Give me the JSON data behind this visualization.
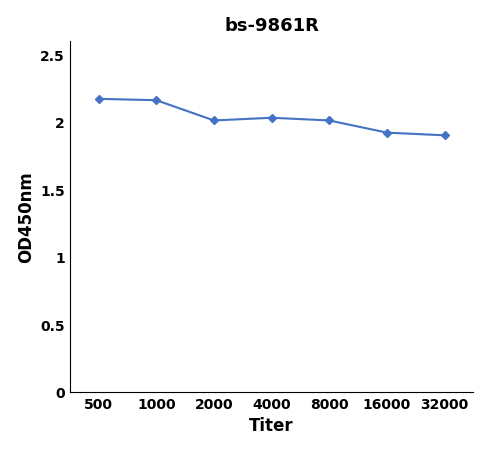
{
  "title": "bs-9861R",
  "xlabel": "Titer",
  "ylabel": "OD450nm",
  "x_positions": [
    0,
    1,
    2,
    3,
    4,
    5,
    6
  ],
  "y_values": [
    2.17,
    2.16,
    2.01,
    2.03,
    2.01,
    1.92,
    1.9
  ],
  "x_tick_labels": [
    "500",
    "1000",
    "2000",
    "4000",
    "8000",
    "16000",
    "32000"
  ],
  "ylim": [
    0,
    2.6
  ],
  "yticks": [
    0,
    0.5,
    1,
    1.5,
    2,
    2.5
  ],
  "ytick_labels": [
    "0",
    "0.5",
    "1",
    "1.5",
    "2",
    "2.5"
  ],
  "line_color": "#4472C4",
  "marker": "D",
  "marker_size": 4,
  "line_width": 1.5,
  "title_fontsize": 13,
  "axis_label_fontsize": 12,
  "tick_fontsize": 10,
  "background_color": "#ffffff"
}
